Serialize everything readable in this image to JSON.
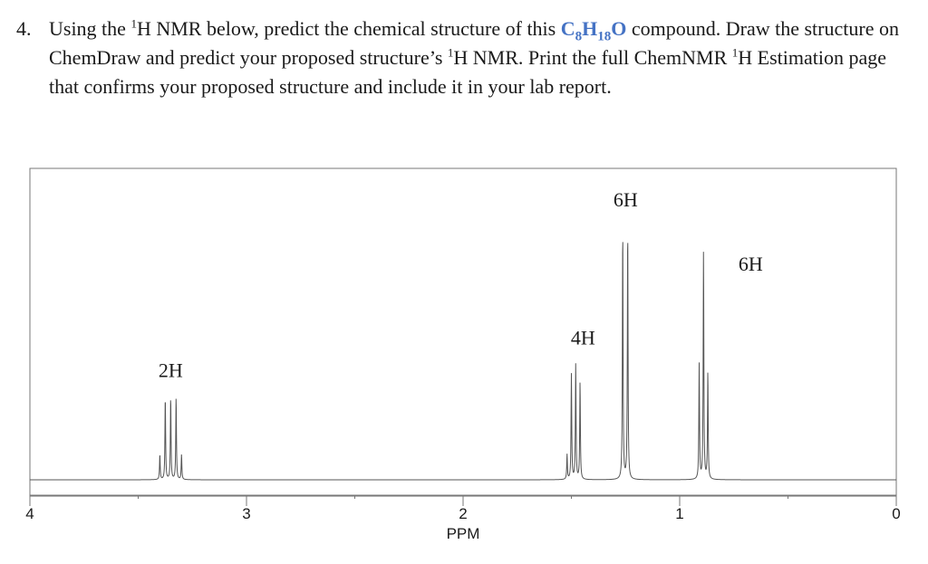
{
  "question": {
    "number": "4.",
    "pre": "Using the ",
    "sup1": "1",
    "mid1": "H NMR below, predict the chemical structure of this ",
    "formula": {
      "c": "C",
      "c_n": "8",
      "h": "H",
      "h_n": "18",
      "o": "O"
    },
    "mid2": " compound. Draw the structure on ChemDraw and predict your proposed structure’s ",
    "sup2": "1",
    "mid3": "H NMR. Print the full ChemNMR ",
    "sup3": "1",
    "mid4": "H Estimation page that confirms your proposed structure and include it in your lab report."
  },
  "colors": {
    "formula": "#4472c4",
    "trace": "#555555",
    "axis": "#777777"
  },
  "chart_data": {
    "type": "line",
    "title": "",
    "xlabel": "PPM",
    "ylabel": "",
    "xlim": [
      4,
      0
    ],
    "ylim": [
      0,
      1
    ],
    "x_ticks": [
      4,
      3,
      2,
      1,
      0
    ],
    "x_tick_labels": [
      "4",
      "3",
      "2",
      "1",
      "0"
    ],
    "grid": false,
    "peaks": [
      {
        "shift": 3.35,
        "lines": [
          3.4,
          3.375,
          3.35,
          3.325,
          3.3
        ],
        "heights": [
          0.1,
          0.33,
          0.33,
          0.33,
          0.1
        ],
        "label": "2H"
      },
      {
        "shift": 1.48,
        "lines": [
          1.52,
          1.5,
          1.48,
          1.46
        ],
        "heights": [
          0.1,
          0.42,
          0.46,
          0.39
        ],
        "label": "4H"
      },
      {
        "shift": 1.25,
        "lines": [
          1.263,
          1.24
        ],
        "heights": [
          1.0,
          1.0
        ],
        "label": "6H"
      },
      {
        "shift": 0.89,
        "lines": [
          0.91,
          0.89,
          0.87
        ],
        "heights": [
          0.46,
          0.91,
          0.43
        ],
        "label": "6H"
      }
    ]
  }
}
